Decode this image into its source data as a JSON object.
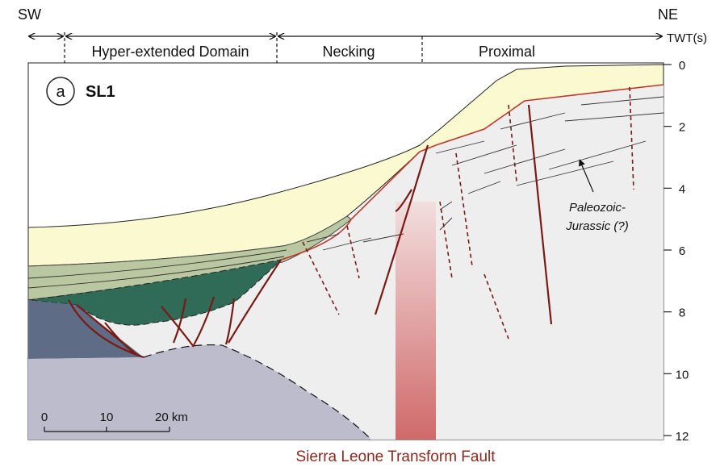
{
  "header": {
    "left": "SW",
    "right": "NE"
  },
  "domains": [
    "Hyper-extended Domain",
    "Necking",
    "Proximal"
  ],
  "axis": {
    "label": "TWT(s)",
    "ticks": [
      0,
      2,
      4,
      6,
      8,
      10,
      12
    ]
  },
  "panel": {
    "letter": "a",
    "name": "SL1"
  },
  "scale_bar": [
    "0",
    "10",
    "20 km"
  ],
  "annotation": [
    "Paleozoic-",
    "Jurassic (?)"
  ],
  "caption": "Sierra Leone Transform Fault"
}
